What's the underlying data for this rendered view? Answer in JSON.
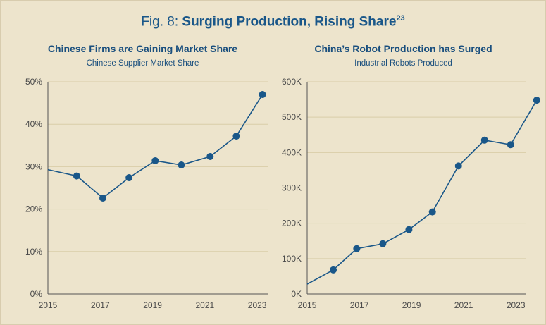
{
  "figure": {
    "prefix": "Fig. 8:",
    "title": "Surging Production, Rising Share",
    "footnote": "23"
  },
  "colors": {
    "background": "#ede4cc",
    "title": "#1a5789",
    "line": "#1a5789",
    "grid": "#d9cda8"
  },
  "chart_data": [
    {
      "type": "line",
      "title": "Chinese Firms are Gaining Market Share",
      "subtitle": "Chinese Supplier Market Share",
      "xlabel": "",
      "ylabel": "",
      "xlim": [
        2015,
        2023.4
      ],
      "ylim": [
        0,
        50
      ],
      "yticks": [
        0,
        10,
        20,
        30,
        40,
        50
      ],
      "ytick_labels": [
        "0%",
        "10%",
        "20%",
        "30%",
        "40%",
        "50%"
      ],
      "xticks": [
        2015,
        2017,
        2019,
        2021,
        2023
      ],
      "xtick_labels": [
        "2015",
        "2017",
        "2019",
        "2021",
        "2023"
      ],
      "grid": true,
      "line_start": {
        "x": 2015,
        "y": 29.3
      },
      "x": [
        2016.1,
        2017.1,
        2018.1,
        2019.1,
        2020.1,
        2021.2,
        2022.2,
        2023.2
      ],
      "y": [
        27.8,
        22.6,
        27.4,
        31.4,
        30.4,
        32.4,
        37.2,
        47.0
      ]
    },
    {
      "type": "line",
      "title": "China’s Robot Production has Surged",
      "subtitle": "Industrial Robots Produced",
      "xlabel": "",
      "ylabel": "",
      "xlim": [
        2015,
        2023.4
      ],
      "ylim": [
        0,
        600000
      ],
      "yticks": [
        0,
        100000,
        200000,
        300000,
        400000,
        500000,
        600000
      ],
      "ytick_labels": [
        "0K",
        "100K",
        "200K",
        "300K",
        "400K",
        "500K",
        "600K"
      ],
      "xticks": [
        2015,
        2017,
        2019,
        2021,
        2023
      ],
      "xtick_labels": [
        "2015",
        "2017",
        "2019",
        "2021",
        "2023"
      ],
      "grid": true,
      "line_start": {
        "x": 2015,
        "y": 28000
      },
      "x": [
        2016.0,
        2016.9,
        2017.9,
        2018.9,
        2019.8,
        2020.8,
        2021.8,
        2022.8,
        2023.8
      ],
      "y": [
        68000,
        128000,
        142000,
        182000,
        232000,
        362000,
        435000,
        422000,
        548000
      ]
    }
  ]
}
